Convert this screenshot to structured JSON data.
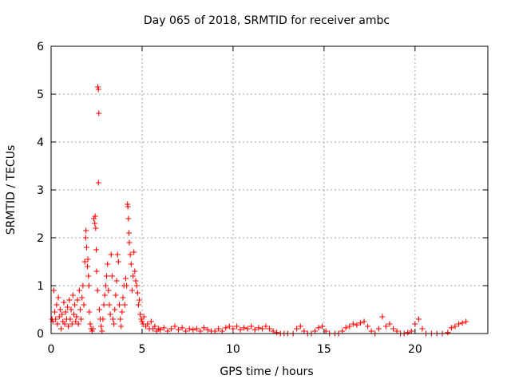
{
  "chart_data": {
    "type": "scatter",
    "title": "Day 065 of 2018, SRMTID for receiver ambc",
    "xlabel": "GPS time / hours",
    "ylabel": "SRMTID / TECUs",
    "xlim": [
      0,
      24
    ],
    "ylim": [
      0,
      6
    ],
    "xticks": [
      0,
      5,
      10,
      15,
      20
    ],
    "yticks": [
      0,
      1,
      2,
      3,
      4,
      5,
      6
    ],
    "grid": true,
    "marker": "+",
    "marker_color": "#ff0000",
    "series": [
      {
        "points": [
          [
            0.05,
            0.3
          ],
          [
            0.1,
            0.25
          ],
          [
            0.15,
            0.9
          ],
          [
            0.2,
            0.45
          ],
          [
            0.25,
            0.3
          ],
          [
            0.3,
            0.6
          ],
          [
            0.35,
            0.2
          ],
          [
            0.4,
            0.75
          ],
          [
            0.45,
            0.35
          ],
          [
            0.5,
            0.5
          ],
          [
            0.55,
            0.1
          ],
          [
            0.6,
            0.4
          ],
          [
            0.65,
            0.25
          ],
          [
            0.7,
            0.65
          ],
          [
            0.75,
            0.2
          ],
          [
            0.8,
            0.45
          ],
          [
            0.85,
            0.3
          ],
          [
            0.9,
            0.55
          ],
          [
            0.95,
            0.15
          ],
          [
            1.0,
            0.7
          ],
          [
            1.05,
            0.3
          ],
          [
            1.1,
            0.5
          ],
          [
            1.15,
            0.2
          ],
          [
            1.2,
            0.8
          ],
          [
            1.25,
            0.4
          ],
          [
            1.3,
            0.6
          ],
          [
            1.35,
            0.25
          ],
          [
            1.4,
            0.35
          ],
          [
            1.45,
            0.7
          ],
          [
            1.5,
            0.2
          ],
          [
            1.55,
            0.9
          ],
          [
            1.6,
            0.5
          ],
          [
            1.65,
            0.3
          ],
          [
            1.7,
            0.75
          ],
          [
            1.75,
            1.0
          ],
          [
            1.8,
            0.6
          ],
          [
            1.85,
            1.5
          ],
          [
            1.9,
            2.0
          ],
          [
            1.92,
            2.15
          ],
          [
            1.95,
            1.8
          ],
          [
            2.0,
            1.4
          ],
          [
            2.02,
            1.55
          ],
          [
            2.05,
            1.2
          ],
          [
            2.08,
            1.0
          ],
          [
            2.1,
            0.45
          ],
          [
            2.15,
            0.2
          ],
          [
            2.2,
            0.1
          ],
          [
            2.25,
            0.05
          ],
          [
            2.3,
            0.1
          ],
          [
            2.35,
            2.4
          ],
          [
            2.4,
            2.3
          ],
          [
            2.42,
            2.45
          ],
          [
            2.45,
            2.2
          ],
          [
            2.48,
            1.75
          ],
          [
            2.5,
            1.3
          ],
          [
            2.55,
            0.9
          ],
          [
            2.57,
            5.15
          ],
          [
            2.6,
            5.1
          ],
          [
            2.62,
            4.6
          ],
          [
            2.6,
            3.15
          ],
          [
            2.65,
            0.5
          ],
          [
            2.7,
            0.3
          ],
          [
            2.75,
            0.15
          ],
          [
            2.8,
            0.05
          ],
          [
            2.85,
            0.3
          ],
          [
            2.9,
            0.6
          ],
          [
            2.95,
            0.8
          ],
          [
            3.0,
            1.0
          ],
          [
            3.05,
            1.2
          ],
          [
            3.1,
            1.45
          ],
          [
            3.15,
            0.9
          ],
          [
            3.2,
            0.6
          ],
          [
            3.25,
            0.4
          ],
          [
            3.3,
            1.65
          ],
          [
            3.35,
            1.2
          ],
          [
            3.4,
            0.3
          ],
          [
            3.45,
            0.2
          ],
          [
            3.5,
            0.5
          ],
          [
            3.55,
            0.8
          ],
          [
            3.6,
            1.1
          ],
          [
            3.65,
            1.65
          ],
          [
            3.7,
            1.5
          ],
          [
            3.75,
            0.6
          ],
          [
            3.8,
            0.3
          ],
          [
            3.85,
            0.15
          ],
          [
            3.9,
            0.45
          ],
          [
            3.95,
            0.75
          ],
          [
            4.0,
            1.0
          ],
          [
            4.05,
            0.6
          ],
          [
            4.1,
            1.15
          ],
          [
            4.15,
            1.0
          ],
          [
            4.2,
            2.7
          ],
          [
            4.22,
            2.65
          ],
          [
            4.25,
            2.4
          ],
          [
            4.28,
            2.1
          ],
          [
            4.3,
            1.9
          ],
          [
            4.35,
            1.65
          ],
          [
            4.4,
            1.45
          ],
          [
            4.45,
            0.9
          ],
          [
            4.5,
            1.2
          ],
          [
            4.55,
            1.7
          ],
          [
            4.6,
            1.3
          ],
          [
            4.65,
            1.1
          ],
          [
            4.7,
            1.0
          ],
          [
            4.75,
            0.85
          ],
          [
            4.8,
            0.6
          ],
          [
            4.85,
            0.7
          ],
          [
            4.9,
            0.4
          ],
          [
            4.95,
            0.3
          ],
          [
            5.0,
            0.25
          ],
          [
            5.05,
            0.2
          ],
          [
            5.1,
            0.35
          ],
          [
            5.2,
            0.15
          ],
          [
            5.3,
            0.2
          ],
          [
            5.4,
            0.1
          ],
          [
            5.5,
            0.25
          ],
          [
            5.6,
            0.1
          ],
          [
            5.7,
            0.15
          ],
          [
            5.8,
            0.05
          ],
          [
            5.9,
            0.1
          ],
          [
            6.0,
            0.08
          ],
          [
            6.2,
            0.12
          ],
          [
            6.4,
            0.05
          ],
          [
            6.6,
            0.1
          ],
          [
            6.8,
            0.15
          ],
          [
            7.0,
            0.08
          ],
          [
            7.2,
            0.12
          ],
          [
            7.4,
            0.05
          ],
          [
            7.6,
            0.1
          ],
          [
            7.8,
            0.08
          ],
          [
            8.0,
            0.1
          ],
          [
            8.2,
            0.05
          ],
          [
            8.4,
            0.12
          ],
          [
            8.6,
            0.08
          ],
          [
            8.8,
            0.05
          ],
          [
            9.0,
            0.05
          ],
          [
            9.2,
            0.1
          ],
          [
            9.4,
            0.05
          ],
          [
            9.6,
            0.12
          ],
          [
            9.8,
            0.15
          ],
          [
            10.0,
            0.1
          ],
          [
            10.2,
            0.15
          ],
          [
            10.4,
            0.08
          ],
          [
            10.6,
            0.12
          ],
          [
            10.8,
            0.1
          ],
          [
            11.0,
            0.15
          ],
          [
            11.2,
            0.08
          ],
          [
            11.4,
            0.12
          ],
          [
            11.6,
            0.1
          ],
          [
            11.8,
            0.15
          ],
          [
            12.0,
            0.1
          ],
          [
            12.2,
            0.05
          ],
          [
            12.4,
            0.02
          ],
          [
            12.6,
            0.0
          ],
          [
            12.8,
            0.0
          ],
          [
            13.0,
            0.0
          ],
          [
            13.3,
            0.0
          ],
          [
            13.5,
            0.1
          ],
          [
            13.7,
            0.15
          ],
          [
            13.9,
            0.05
          ],
          [
            14.1,
            0.0
          ],
          [
            14.3,
            0.0
          ],
          [
            14.5,
            0.05
          ],
          [
            14.7,
            0.12
          ],
          [
            14.9,
            0.15
          ],
          [
            15.1,
            0.05
          ],
          [
            15.3,
            0.0
          ],
          [
            15.6,
            0.0
          ],
          [
            15.8,
            0.0
          ],
          [
            16.0,
            0.05
          ],
          [
            16.2,
            0.12
          ],
          [
            16.4,
            0.15
          ],
          [
            16.6,
            0.2
          ],
          [
            16.8,
            0.18
          ],
          [
            17.0,
            0.22
          ],
          [
            17.2,
            0.25
          ],
          [
            17.4,
            0.15
          ],
          [
            17.6,
            0.05
          ],
          [
            17.8,
            0.0
          ],
          [
            18.0,
            0.1
          ],
          [
            18.2,
            0.35
          ],
          [
            18.4,
            0.15
          ],
          [
            18.6,
            0.2
          ],
          [
            18.8,
            0.1
          ],
          [
            19.0,
            0.05
          ],
          [
            19.2,
            0.0
          ],
          [
            19.4,
            0.0
          ],
          [
            19.6,
            0.02
          ],
          [
            19.8,
            0.05
          ],
          [
            20.0,
            0.2
          ],
          [
            20.2,
            0.3
          ],
          [
            20.4,
            0.1
          ],
          [
            20.6,
            0.0
          ],
          [
            20.9,
            0.0
          ],
          [
            21.2,
            0.0
          ],
          [
            21.5,
            0.0
          ],
          [
            21.8,
            0.02
          ],
          [
            22.0,
            0.12
          ],
          [
            22.2,
            0.15
          ],
          [
            22.4,
            0.2
          ],
          [
            22.6,
            0.22
          ],
          [
            22.8,
            0.25
          ]
        ]
      }
    ]
  }
}
